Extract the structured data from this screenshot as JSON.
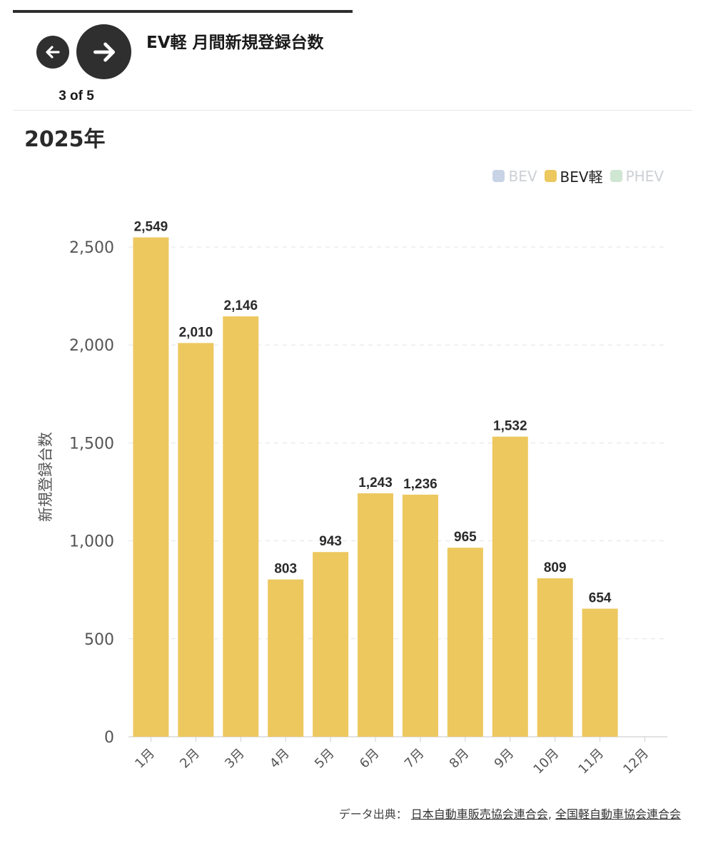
{
  "header": {
    "title": "EV軽 月間新規登録台数",
    "pager": "3 of 5",
    "prev_icon": "arrow-left-icon",
    "next_icon": "arrow-right-icon"
  },
  "chart_title": "2025年",
  "legend": [
    {
      "label": "BEV",
      "color": "#c8d4e6",
      "active": false
    },
    {
      "label": "BEV軽",
      "color": "#edc85f",
      "active": true
    },
    {
      "label": "PHEV",
      "color": "#cfe6d2",
      "active": false
    }
  ],
  "chart_data": {
    "type": "bar",
    "title": "2025年",
    "categories": [
      "1月",
      "2月",
      "3月",
      "4月",
      "5月",
      "6月",
      "7月",
      "8月",
      "9月",
      "10月",
      "11月",
      "12月"
    ],
    "series": [
      {
        "name": "BEV軽",
        "values": [
          2549,
          2010,
          2146,
          803,
          943,
          1243,
          1236,
          965,
          1532,
          809,
          654,
          null
        ]
      }
    ],
    "value_labels": [
      "2,549",
      "2,010",
      "2,146",
      "803",
      "943",
      "1,243",
      "1,236",
      "965",
      "1,532",
      "809",
      "654",
      ""
    ],
    "ylabel": "新規登録台数",
    "xlabel": "",
    "ylim": [
      0,
      2500
    ],
    "yticks": [
      0,
      500,
      1000,
      1500,
      2000,
      2500
    ],
    "ytick_labels": [
      "0",
      "500",
      "1,000",
      "1,500",
      "2,000",
      "2,500"
    ],
    "grid": true,
    "bar_color": "#edc85f",
    "legend_position": "top-right"
  },
  "source": {
    "label": "データ出典：",
    "links": [
      "日本自動車販売協会連合会",
      "全国軽自動車協会連合会"
    ],
    "separator": ", "
  }
}
